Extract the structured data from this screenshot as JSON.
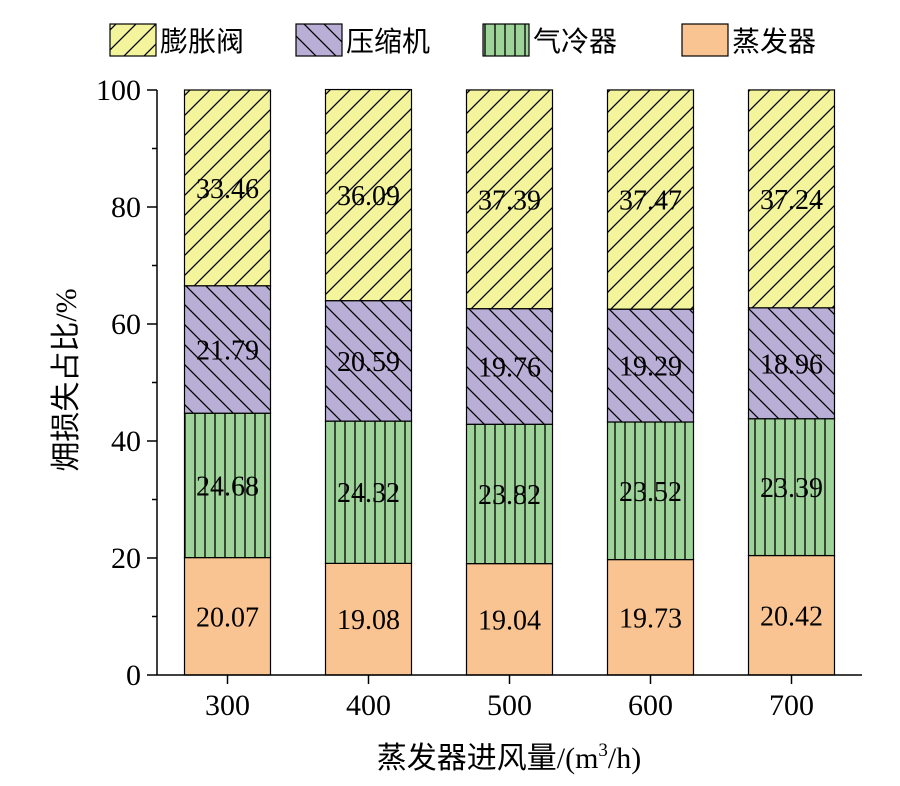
{
  "chart_data": {
    "type": "bar",
    "stacked": true,
    "categories": [
      "300",
      "400",
      "500",
      "600",
      "700"
    ],
    "series": [
      {
        "name": "蒸发器",
        "color": "#f9c491",
        "pattern": "none",
        "values": [
          20.07,
          19.08,
          19.04,
          19.73,
          20.42
        ]
      },
      {
        "name": "气冷器",
        "color": "#9ed49a",
        "pattern": "vertical",
        "values": [
          24.68,
          24.32,
          23.82,
          23.52,
          23.39
        ]
      },
      {
        "name": "压缩机",
        "color": "#b9aed6",
        "pattern": "backslash",
        "values": [
          21.79,
          20.59,
          19.76,
          19.29,
          18.96
        ]
      },
      {
        "name": "膨胀阀",
        "color": "#f3f49c",
        "pattern": "slash",
        "values": [
          33.46,
          36.09,
          37.39,
          37.47,
          37.24
        ]
      }
    ],
    "legend_order": [
      3,
      2,
      1,
      0
    ],
    "ylim": [
      0,
      100
    ],
    "yticks": [
      0,
      20,
      40,
      60,
      80,
      100
    ],
    "xlabel_parts": {
      "pre": "蒸发器进风量/(m",
      "sup": "3",
      "post": "/h)"
    },
    "ylabel": "㶲损失占比/%",
    "legend_position": "top",
    "grid": false
  }
}
